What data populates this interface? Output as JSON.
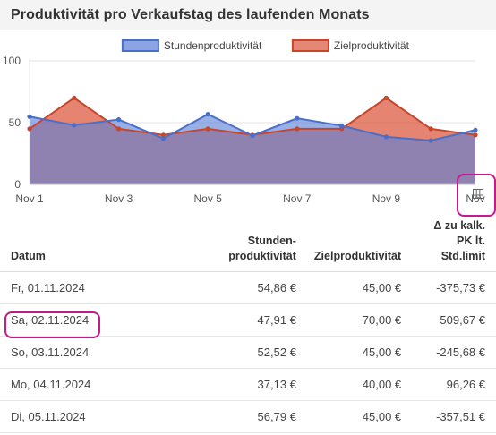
{
  "header": {
    "title": "Produktivität pro Verkaufstag des laufenden Monats"
  },
  "legend": [
    {
      "label": "Stundenproduktivität",
      "color": "#5b7fd6"
    },
    {
      "label": "Zielproduktivität",
      "color": "#d9553a"
    }
  ],
  "chart_data": {
    "type": "area",
    "x": [
      "Nov 1",
      "Nov 2",
      "Nov 3",
      "Nov 4",
      "Nov 5",
      "Nov 6",
      "Nov 7",
      "Nov 8",
      "Nov 9",
      "Nov 10",
      "Nov 11"
    ],
    "x_tick_labels": [
      "Nov 1",
      "Nov 3",
      "Nov 5",
      "Nov 7",
      "Nov 9",
      "Nov"
    ],
    "ylim": [
      0,
      100
    ],
    "y_ticks": [
      "0",
      "50",
      "100"
    ],
    "grid": true,
    "legend_position": "top",
    "series": [
      {
        "name": "Stundenproduktivität",
        "color": "#5b7fd6",
        "values": [
          54.86,
          47.91,
          52.52,
          37.13,
          56.79,
          39.5,
          53.5,
          47.5,
          38.5,
          35.5,
          44
        ]
      },
      {
        "name": "Zielproduktivität",
        "color": "#d9553a",
        "values": [
          45,
          70,
          45,
          40,
          45,
          40,
          45,
          45,
          70,
          45,
          40
        ]
      }
    ]
  },
  "table_button": {
    "icon": "table-icon"
  },
  "table": {
    "headers": {
      "date": "Datum",
      "sp_line1": "Stunden-",
      "sp_line2": "produktivität",
      "zp": "Zielproduktivität",
      "delta_line1": "Δ zu kalk.",
      "delta_line2": "PK lt.",
      "delta_line3": "Std.limit"
    },
    "rows": [
      {
        "date": "Fr, 01.11.2024",
        "sp": "54,86 €",
        "zp": "45,00 €",
        "delta": "-375,73 €",
        "status": "pos"
      },
      {
        "date": "Sa, 02.11.2024",
        "sp": "47,91 €",
        "zp": "70,00 €",
        "delta": "509,67 €",
        "status": "neg"
      },
      {
        "date": "So, 03.11.2024",
        "sp": "52,52 €",
        "zp": "45,00 €",
        "delta": "-245,68 €",
        "status": "pos"
      },
      {
        "date": "Mo, 04.11.2024",
        "sp": "37,13 €",
        "zp": "40,00 €",
        "delta": "96,26 €",
        "status": "neg"
      },
      {
        "date": "Di, 05.11.2024",
        "sp": "56,79 €",
        "zp": "45,00 €",
        "delta": "-357,51 €",
        "status": "pos"
      }
    ]
  }
}
